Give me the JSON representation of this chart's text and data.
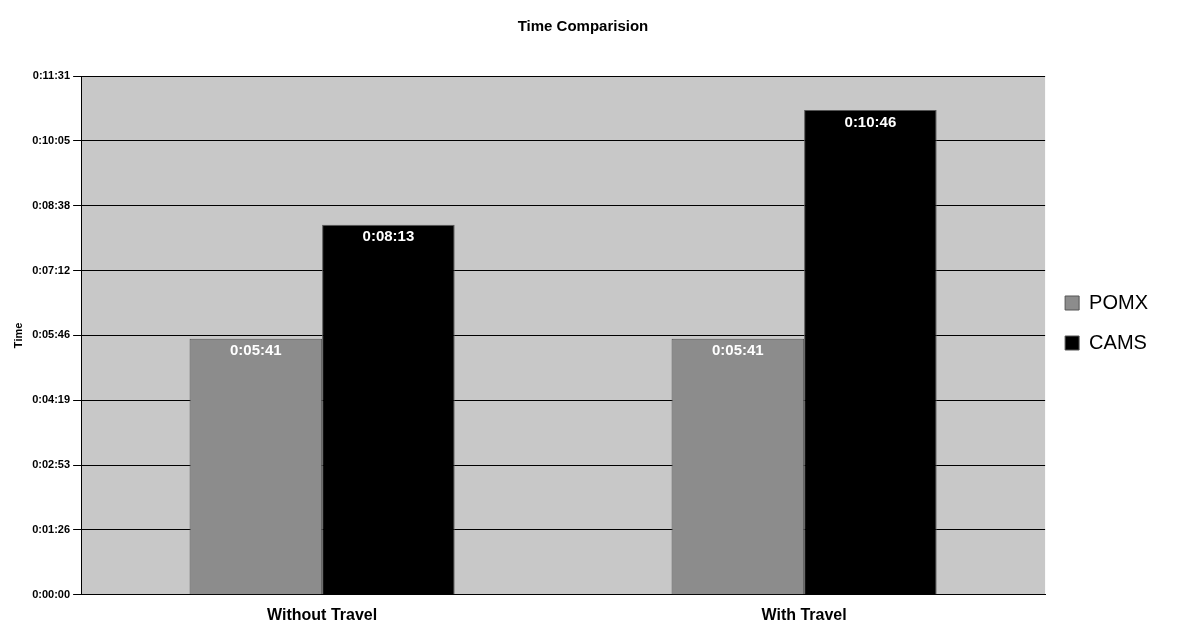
{
  "chart_data": {
    "type": "bar",
    "title": "Time Comparision",
    "ylabel": "Time",
    "categories": [
      "Without Travel",
      "With Travel"
    ],
    "series": [
      {
        "name": "POMX",
        "color": "#8c8c8c",
        "values": [
          341,
          341
        ],
        "value_labels": [
          "0:05:41",
          "0:05:41"
        ]
      },
      {
        "name": "CAMS",
        "color": "#000000",
        "values": [
          493,
          646
        ],
        "value_labels": [
          "0:08:13",
          "0:10:46"
        ]
      }
    ],
    "ylim": [
      0,
      691.2
    ],
    "yticks": [
      {
        "value": 0,
        "label": "0:00:00"
      },
      {
        "value": 86.4,
        "label": "0:01:26"
      },
      {
        "value": 172.8,
        "label": "0:02:53"
      },
      {
        "value": 259.2,
        "label": "0:04:19"
      },
      {
        "value": 345.6,
        "label": "0:05:46"
      },
      {
        "value": 432,
        "label": "0:07:12"
      },
      {
        "value": 518.4,
        "label": "0:08:38"
      },
      {
        "value": 604.8,
        "label": "0:10:05"
      },
      {
        "value": 691.2,
        "label": "0:11:31"
      }
    ],
    "grid": "y",
    "legend": "right"
  }
}
